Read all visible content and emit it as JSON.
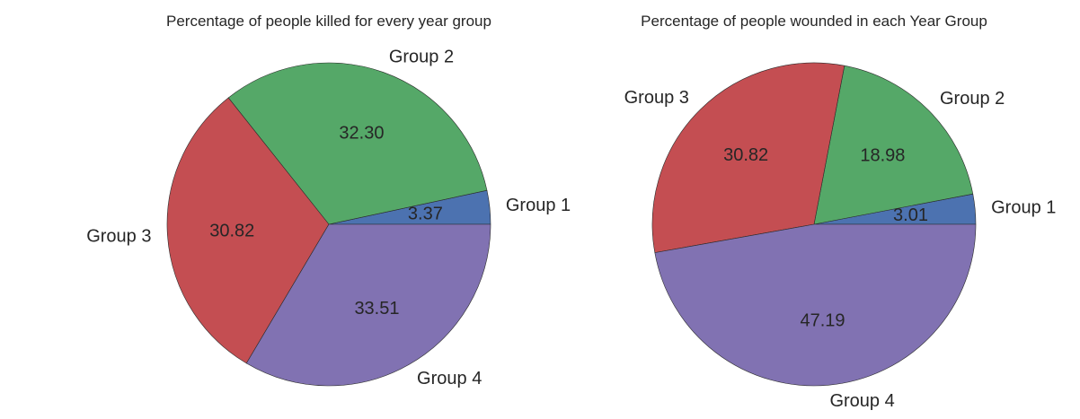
{
  "chart_data": [
    {
      "type": "pie",
      "title": "Percentage of people killed for every year group",
      "categories": [
        "Group 1",
        "Group 2",
        "Group 3",
        "Group 4"
      ],
      "values": [
        3.37,
        32.3,
        30.82,
        33.51
      ],
      "value_labels": [
        "3.37",
        "32.30",
        "30.82",
        "33.51"
      ],
      "colors": [
        "#4c72b0",
        "#55a868",
        "#c44e52",
        "#8172b2"
      ],
      "start_angle": 0,
      "direction": "counterclockwise",
      "legend": "none"
    },
    {
      "type": "pie",
      "title": "Percentage of people wounded in each Year Group",
      "categories": [
        "Group 1",
        "Group 2",
        "Group 3",
        "Group 4"
      ],
      "values": [
        3.01,
        18.98,
        30.82,
        47.19
      ],
      "value_labels": [
        "3.01",
        "18.98",
        "30.82",
        "47.19"
      ],
      "colors": [
        "#4c72b0",
        "#55a868",
        "#c44e52",
        "#8172b2"
      ],
      "start_angle": 0,
      "direction": "counterclockwise",
      "legend": "none"
    }
  ]
}
